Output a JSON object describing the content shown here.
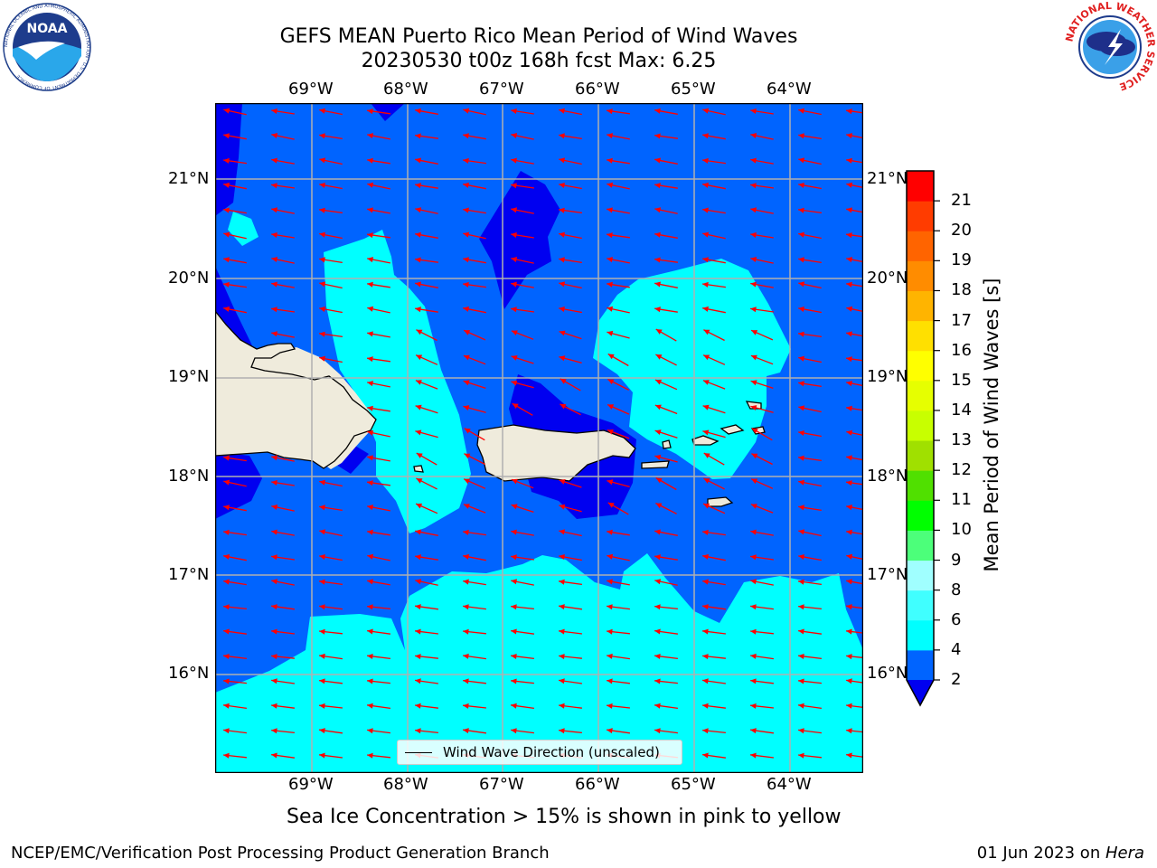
{
  "title": {
    "line1": "GEFS MEAN Puerto Rico Mean Period of Wind Waves",
    "line2": "20230530 t00z 168h fcst   Max: 6.25"
  },
  "logos": {
    "noaa": {
      "icon": "noaa-logo",
      "text": "NOAA",
      "ring_text": "NATIONAL OCEANIC AND ATMOSPHERIC ADMINISTRATION · U.S. DEPARTMENT OF COMMERCE"
    },
    "nws": {
      "icon": "nws-logo",
      "ring_text": "NATIONAL WEATHER SERVICE"
    }
  },
  "map": {
    "lon_ticks": [
      "69°W",
      "68°W",
      "67°W",
      "66°W",
      "65°W",
      "64°W"
    ],
    "lat_ticks": [
      "21°N",
      "20°N",
      "19°N",
      "18°N",
      "17°N",
      "16°N"
    ],
    "legend": "Wind Wave Direction (unscaled)",
    "arrow_color": "#ff0000",
    "land_color": "#efebdc"
  },
  "colorbar": {
    "label": "Mean Period of Wind Waves [s]",
    "ticks": [
      "2",
      "4",
      "6",
      "8",
      "9",
      "10",
      "11",
      "12",
      "13",
      "14",
      "15",
      "16",
      "17",
      "18",
      "19",
      "20",
      "21"
    ],
    "colors": [
      "#0064ff",
      "#00ffff",
      "#40ffff",
      "#a0ffff",
      "#4cff7a",
      "#00ff00",
      "#50e000",
      "#a0e000",
      "#c8ff00",
      "#e6ff00",
      "#ffff00",
      "#ffe000",
      "#ffb400",
      "#ff8c00",
      "#ff6400",
      "#ff3c00",
      "#ff0000"
    ],
    "under_color": "#0000f0"
  },
  "note": "Sea Ice Concentration > 15% is shown in pink to yellow",
  "footer": {
    "left": "NCEP/EMC/Verification Post Processing Product Generation Branch",
    "date": "01 Jun 2023 on ",
    "host": "Hera"
  }
}
